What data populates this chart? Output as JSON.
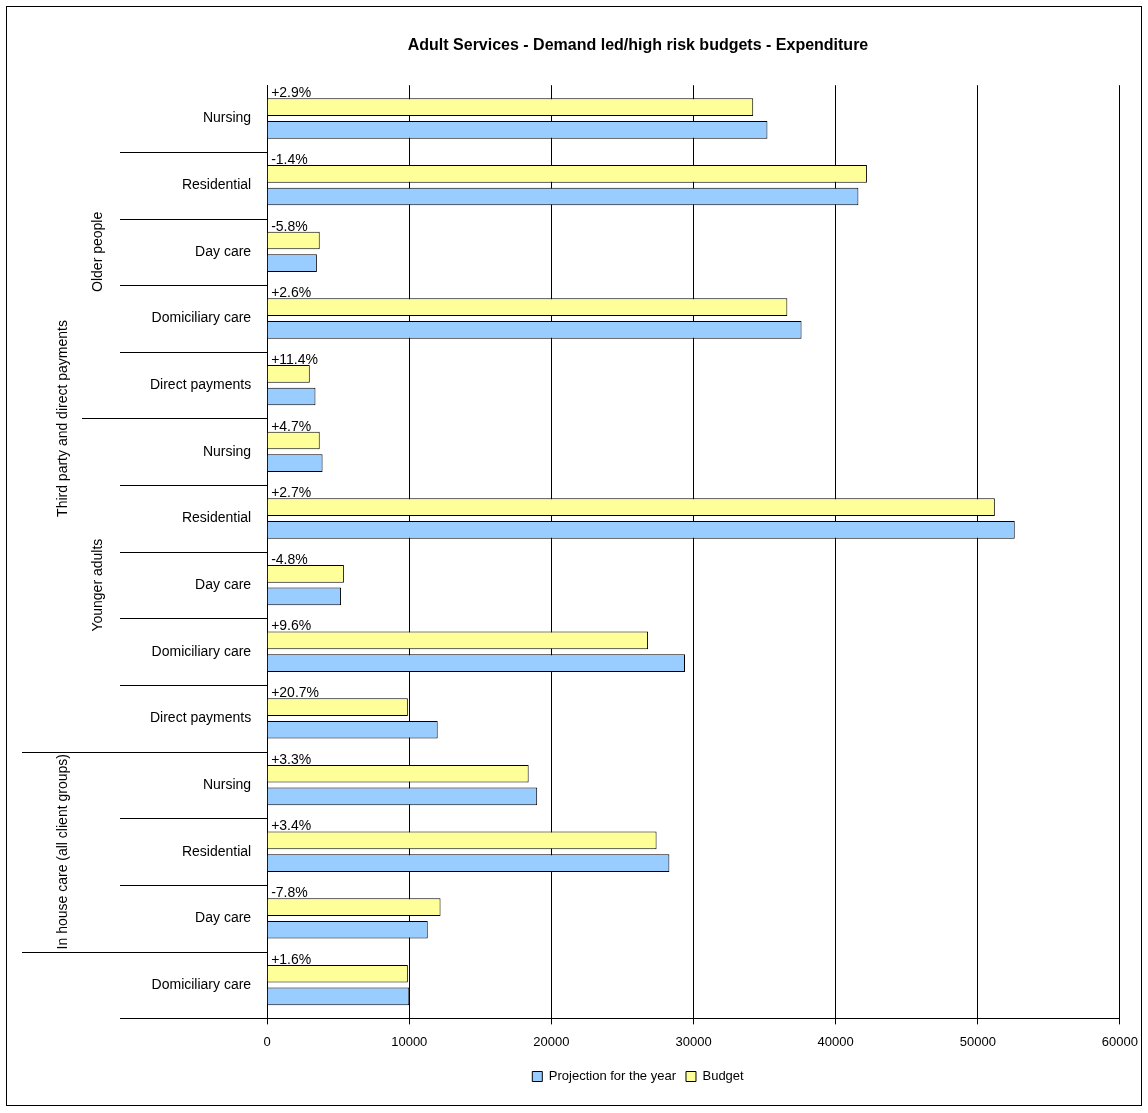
{
  "chart_data": {
    "type": "bar",
    "orientation": "horizontal",
    "title": "Adult Services - Demand led/high risk budgets - Expenditure",
    "categories": [
      "Nursing",
      "Residential",
      "Day care",
      "Domiciliary care",
      "Direct payments",
      "Nursing",
      "Residential",
      "Day care",
      "Domiciliary care",
      "Direct payments",
      "Nursing",
      "Residential",
      "Day care",
      "Domiciliary care"
    ],
    "series": [
      {
        "name": "Projection for the year",
        "color": "#99ccff",
        "values": [
          35200,
          41600,
          3500,
          37600,
          3400,
          3900,
          52600,
          5200,
          29400,
          12000,
          19000,
          28300,
          11300,
          10000
        ]
      },
      {
        "name": "Budget",
        "color": "#ffff99",
        "values": [
          34200,
          42200,
          3700,
          36600,
          3000,
          3700,
          51200,
          5400,
          26800,
          9900,
          18400,
          27400,
          12200,
          9900
        ]
      }
    ],
    "annotations": [
      "+2.9%",
      "-1.4%",
      "-5.8%",
      "+2.6%",
      "+11.4%",
      "+4.7%",
      "+2.7%",
      "-4.8%",
      "+9.6%",
      "+20.7%",
      "+3.3%",
      "+3.4%",
      "-7.8%",
      "+1.6%",
      "Third party and direct payments",
      "Older people",
      "Younger adults",
      "In house care (all client groups)"
    ],
    "xlim": [
      0,
      60000
    ],
    "xticks": [
      0,
      10000,
      20000,
      30000,
      40000,
      50000,
      60000
    ],
    "grid": "x",
    "legend": "bottom"
  }
}
